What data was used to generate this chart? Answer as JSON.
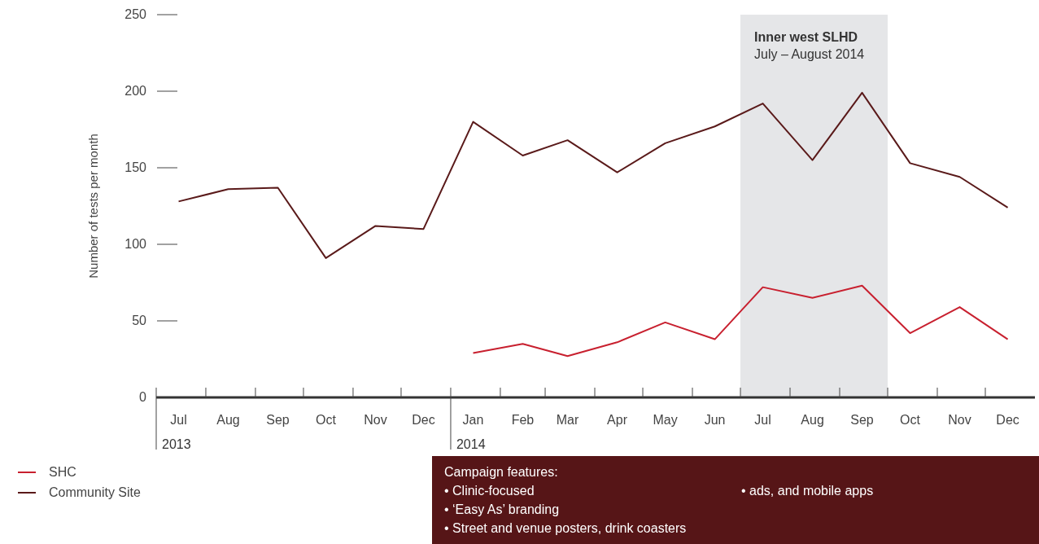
{
  "chart_data": {
    "type": "line",
    "ylabel": "Number of tests per month",
    "x": [
      "2013-07-15",
      "2013-08-15",
      "2013-09-15",
      "2013-10-15",
      "2013-11-15",
      "2013-12-15",
      "2014-01-15",
      "2014-02-15",
      "2014-03-15",
      "2014-04-15",
      "2014-05-15",
      "2014-06-15",
      "2014-07-15",
      "2014-08-15",
      "2014-09-15",
      "2014-10-15",
      "2014-11-15",
      "2014-12-15"
    ],
    "series": [
      {
        "name": "SHC",
        "color": "#c8202f",
        "values": [
          null,
          null,
          null,
          null,
          null,
          null,
          29,
          35,
          27,
          36,
          49,
          38,
          72,
          65,
          73,
          42,
          59,
          38
        ]
      },
      {
        "name": "Community Site",
        "color": "#5a1a1a",
        "values": [
          128,
          136,
          137,
          91,
          112,
          110,
          180,
          158,
          168,
          147,
          166,
          177,
          192,
          155,
          199,
          153,
          144,
          124
        ]
      }
    ],
    "xlim": [
      "2013-07-01",
      "2015-01-01"
    ],
    "x2lim": [
      "2013-07-01",
      "2014-01-01"
    ],
    "x2ticks": [
      {
        "value": "2013-07-01",
        "label": "2013"
      },
      {
        "value": "2014-01-01",
        "label": "2014"
      }
    ],
    "xticks": [
      {
        "value": "2013-07-01",
        "label": null
      },
      {
        "value": "2013-07-15",
        "label": "Jul"
      },
      {
        "value": "2013-08-01",
        "label": null
      },
      {
        "value": "2013-08-15",
        "label": "Aug"
      },
      {
        "value": "2013-09-01",
        "label": null
      },
      {
        "value": "2013-09-15",
        "label": "Sep"
      },
      {
        "value": "2013-10-01",
        "label": null
      },
      {
        "value": "2013-10-15",
        "label": "Oct"
      },
      {
        "value": "2013-11-01",
        "label": null
      },
      {
        "value": "2013-11-15",
        "label": "Nov"
      },
      {
        "value": "2013-12-01",
        "label": null
      },
      {
        "value": "2013-12-15",
        "label": "Dec"
      },
      {
        "value": "2014-01-01",
        "label": null
      },
      {
        "value": "2014-01-15",
        "label": "Jan"
      },
      {
        "value": "2014-02-01",
        "label": null
      },
      {
        "value": "2014-02-15",
        "label": "Feb"
      },
      {
        "value": "2014-03-01",
        "label": null
      },
      {
        "value": "2014-03-15",
        "label": "Mar"
      },
      {
        "value": "2014-04-01",
        "label": null
      },
      {
        "value": "2014-04-15",
        "label": "Apr"
      },
      {
        "value": "2014-05-01",
        "label": null
      },
      {
        "value": "2014-05-15",
        "label": "May"
      },
      {
        "value": "2014-06-01",
        "label": null
      },
      {
        "value": "2014-06-15",
        "label": "Jun"
      },
      {
        "value": "2014-07-01",
        "label": null
      },
      {
        "value": "2014-07-15",
        "label": "Jul"
      },
      {
        "value": "2014-08-01",
        "label": null
      },
      {
        "value": "2014-08-15",
        "label": "Aug"
      },
      {
        "value": "2014-09-01",
        "label": null
      },
      {
        "value": "2014-09-15",
        "label": "Sep"
      },
      {
        "value": "2014-10-01",
        "label": null
      },
      {
        "value": "2014-10-15",
        "label": "Oct"
      },
      {
        "value": "2014-11-01",
        "label": null
      },
      {
        "value": "2014-11-15",
        "label": "Nov"
      },
      {
        "value": "2014-12-01",
        "label": null
      },
      {
        "value": "2014-12-15",
        "label": "Dec"
      }
    ],
    "ylim": [
      0,
      250
    ],
    "yticks": [
      0,
      50,
      100,
      150,
      200,
      250
    ],
    "bands": [
      {
        "axis": "x",
        "from": "2014-07-01",
        "to": "2014-10-01",
        "label": "Inner west SLHD\nJuly – August 2014",
        "color": "#e5e6e8"
      }
    ],
    "annotations": [
      "Campaign features:",
      "• Clinic-focused",
      "• ‘Easy As’ branding",
      "• Street and venue posters, drink coasters",
      "• ads, and mobile apps"
    ],
    "legend": "bottom left",
    "grid": false,
    "marker": "none",
    "line_style": "solid"
  }
}
